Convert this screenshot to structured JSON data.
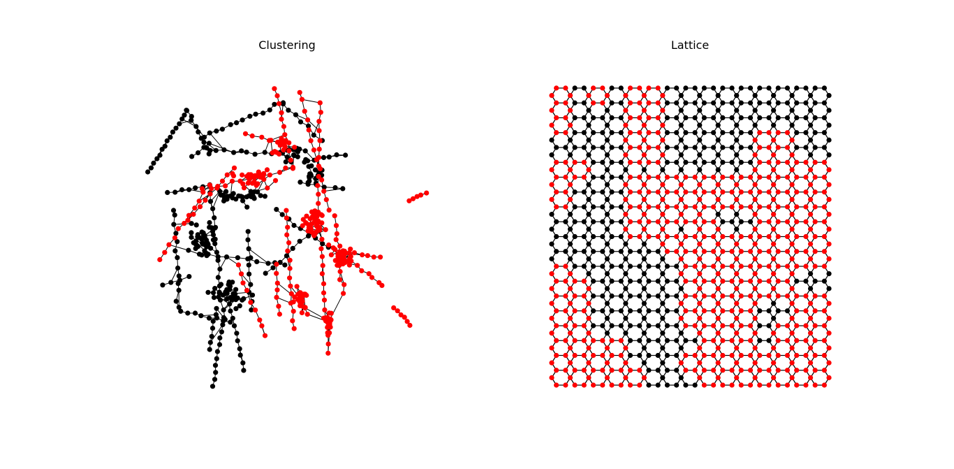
{
  "panels": [
    {
      "title": "Clustering",
      "description_colors": {
        "community_a": "#000000",
        "community_b": "#ff0000"
      }
    },
    {
      "title": "Lattice",
      "lattice": {
        "type": "hexagonal",
        "hex_columns": 15,
        "hex_rows": 20,
        "colors": {
          "black": "#000000",
          "red": "#ff0000"
        },
        "red_column_ranges_by_row": [
          [
            [
              0,
              0
            ],
            [
              2,
              2
            ],
            [
              4,
              5
            ]
          ],
          [
            [
              0,
              0
            ],
            [
              4,
              5
            ]
          ],
          [
            [
              0,
              0
            ],
            [
              4,
              5
            ]
          ],
          [
            [
              4,
              5
            ],
            [
              11,
              12
            ]
          ],
          [
            [
              4,
              5
            ],
            [
              11,
              12
            ]
          ],
          [
            [
              0,
              1
            ],
            [
              11,
              14
            ]
          ],
          [
            [
              0,
              0
            ],
            [
              4,
              14
            ]
          ],
          [
            [
              0,
              0
            ],
            [
              4,
              14
            ]
          ],
          [
            [
              4,
              7
            ],
            [
              11,
              14
            ]
          ],
          [
            [
              4,
              5
            ],
            [
              8,
              8
            ],
            [
              11,
              14
            ]
          ],
          [
            [
              6,
              14
            ]
          ],
          [
            [
              7,
              14
            ]
          ],
          [
            [
              0,
              0
            ],
            [
              7,
              12
            ]
          ],
          [
            [
              0,
              1
            ],
            [
              8,
              12
            ]
          ],
          [
            [
              0,
              1
            ],
            [
              7,
              10
            ],
            [
              13,
              14
            ]
          ],
          [
            [
              0,
              1
            ],
            [
              7,
              10
            ],
            [
              13,
              14
            ]
          ],
          [
            [
              0,
              1
            ],
            [
              8,
              10
            ],
            [
              12,
              14
            ]
          ],
          [
            [
              0,
              3
            ],
            [
              8,
              10
            ],
            [
              12,
              14
            ]
          ],
          [
            [
              0,
              3
            ],
            [
              7,
              14
            ]
          ],
          [
            [
              0,
              4
            ],
            [
              8,
              14
            ]
          ]
        ]
      }
    }
  ]
}
